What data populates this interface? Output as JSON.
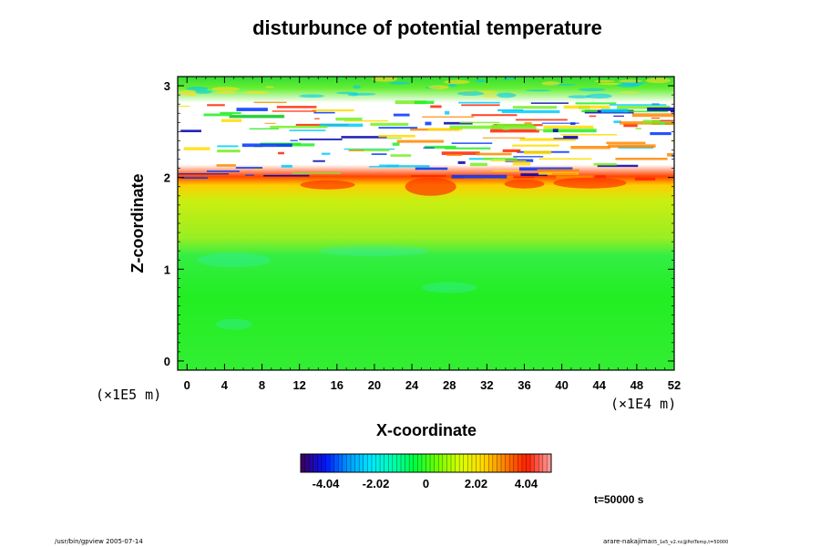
{
  "chart_data": {
    "type": "heatmap",
    "title": "disturbunce of potential temperature",
    "xlabel": "X-coordinate",
    "ylabel": "Z-coordinate",
    "x_unit": "(×1E4 m)",
    "y_unit": "(×1E5 m)",
    "xlim": [
      -1,
      52
    ],
    "ylim": [
      -0.1,
      3.1
    ],
    "x_ticks": [
      0,
      4,
      8,
      12,
      16,
      20,
      24,
      28,
      32,
      36,
      40,
      44,
      48,
      52
    ],
    "y_ticks": [
      0,
      1,
      2,
      3
    ],
    "colorbar": {
      "ticks": [
        -4.04,
        -2.02,
        0,
        2.02,
        4.04
      ],
      "tick_labels": [
        "-4.04",
        "-2.02",
        "0",
        "2.02",
        "4.04"
      ],
      "range": [
        -5.05,
        5.05
      ],
      "colors": [
        "#3a0064",
        "#0014ff",
        "#0096ff",
        "#00e6ff",
        "#00ffb4",
        "#00ff3c",
        "#6eff00",
        "#d7ff00",
        "#ffdc00",
        "#ff8200",
        "#ff1e00",
        "#ff9696"
      ]
    },
    "field_regions": [
      {
        "z_range": [
          0.0,
          1.25
        ],
        "description_value": 0.0,
        "color": "#22ee22"
      },
      {
        "z_range": [
          1.25,
          1.85
        ],
        "description_value": 1.2,
        "color": "#99ee22"
      },
      {
        "z_range": [
          1.85,
          2.0
        ],
        "description_value": 3.5,
        "color": "#ff7700"
      },
      {
        "z_range": [
          2.0,
          2.9
        ],
        "description_value": 6.0,
        "color": "#ffffff"
      },
      {
        "z_range": [
          2.9,
          3.1
        ],
        "description_value": 0.5,
        "color": "#55ee22"
      }
    ],
    "time_label": "t=50000 s"
  },
  "footer": {
    "left": "/usr/bin/gpview 2005-07-14",
    "right_main": "arare-nakajima",
    "right_sub": "05_1e5_v2.nc@PotTemp,t=50000"
  }
}
